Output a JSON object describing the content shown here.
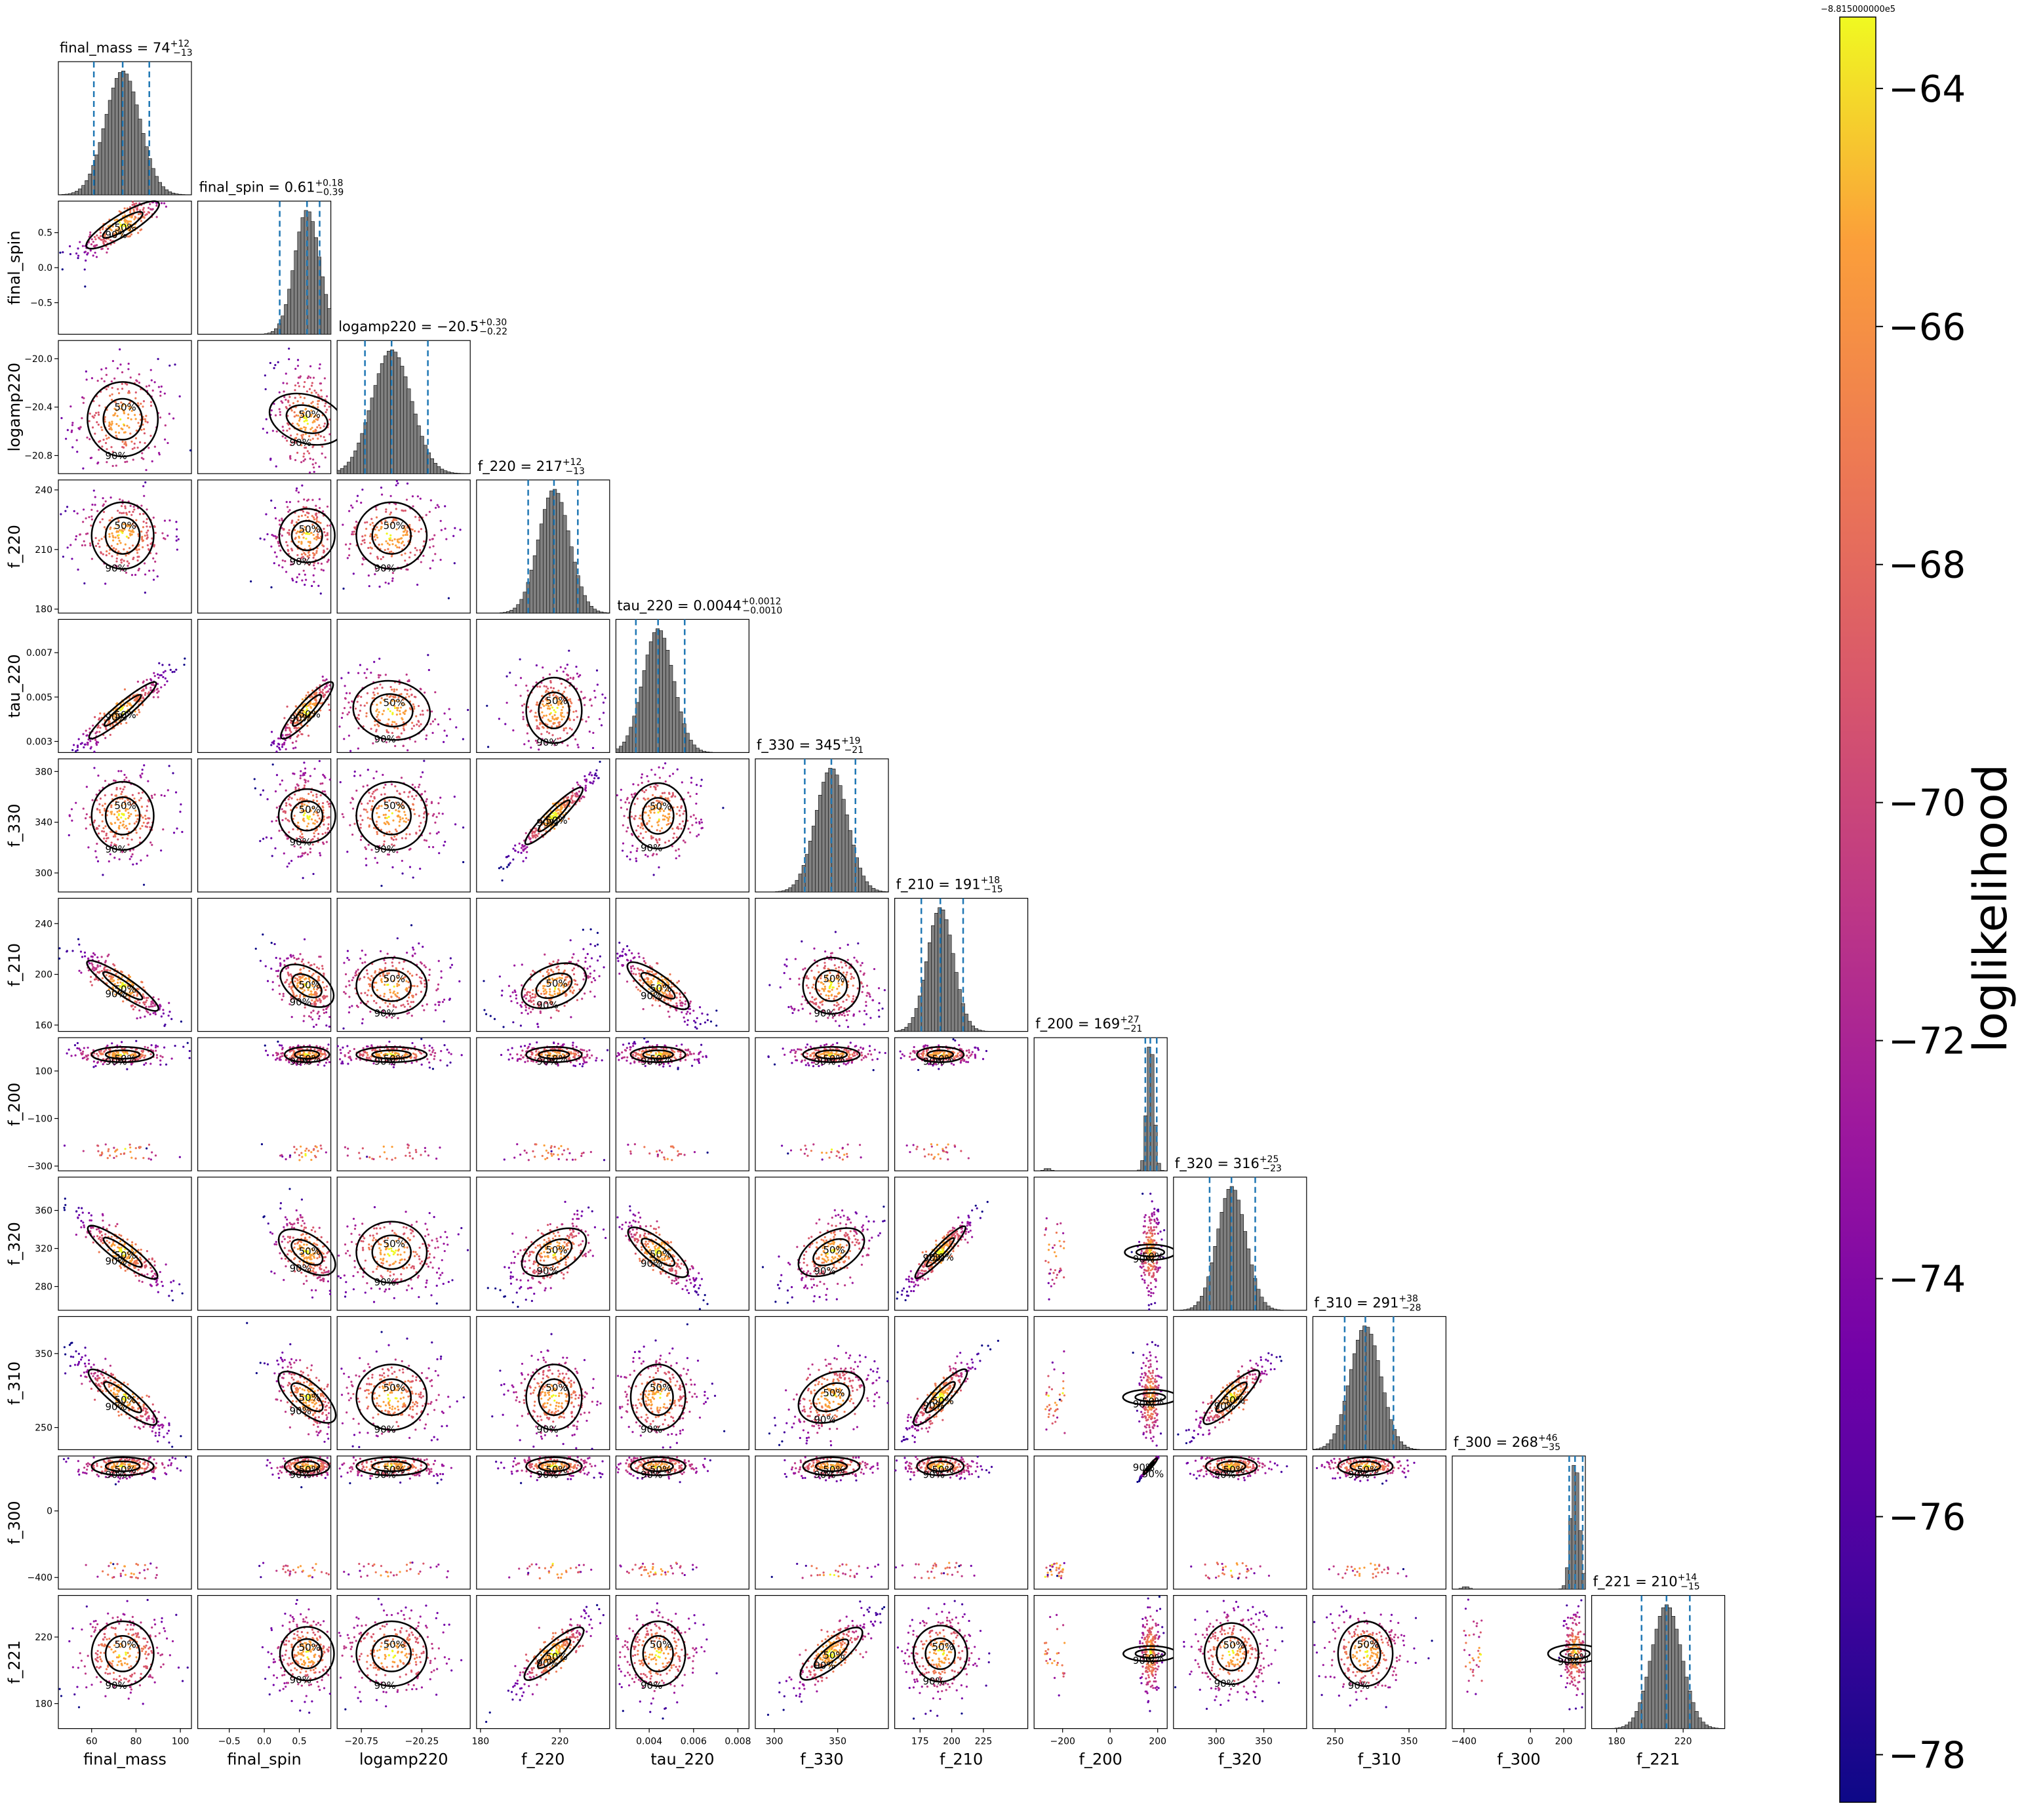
{
  "chart_data": {
    "type": "scatter",
    "title": "",
    "parameters": [
      {
        "name": "final_mass",
        "median": 74,
        "plus": "12",
        "minus": "13",
        "lim": [
          45,
          105
        ],
        "ticks": [
          60,
          80,
          100
        ],
        "tick_labels": [
          "60",
          "80",
          "100"
        ]
      },
      {
        "name": "final_spin",
        "median": 0.61,
        "plus": "0.18",
        "minus": "0.39",
        "lim": [
          -0.95,
          0.95
        ],
        "ticks": [
          -0.5,
          0.0,
          0.5
        ],
        "tick_labels": [
          "−0.5",
          "0.0",
          "0.5"
        ]
      },
      {
        "name": "logamp220",
        "median": -20.5,
        "plus": "0.30",
        "minus": "0.22",
        "lim": [
          -20.95,
          -19.85
        ],
        "ticks": [
          -20.75,
          -20.25
        ],
        "tick_labels": [
          "−20.75",
          "−20.25"
        ],
        "y_ticks": [
          -20.8,
          -20.4,
          -20.0
        ],
        "y_tick_labels": [
          "−20.8",
          "−20.4",
          "−20.0"
        ]
      },
      {
        "name": "f_220",
        "median": 217,
        "plus": "12",
        "minus": "13",
        "lim": [
          178,
          245
        ],
        "ticks": [
          180,
          220
        ],
        "tick_labels": [
          "180",
          "220"
        ],
        "y_ticks": [
          180,
          210,
          240
        ],
        "y_tick_labels": [
          "180",
          "210",
          "240"
        ]
      },
      {
        "name": "tau_220",
        "median": 0.0044,
        "plus": "0.0012",
        "minus": "0.0010",
        "lim": [
          0.0025,
          0.0085
        ],
        "ticks": [
          0.004,
          0.006,
          0.008
        ],
        "tick_labels": [
          "0.004",
          "0.006",
          "0.008"
        ],
        "y_ticks": [
          0.003,
          0.005,
          0.007
        ],
        "y_tick_labels": [
          "0.003",
          "0.005",
          "0.007"
        ]
      },
      {
        "name": "f_330",
        "median": 345,
        "plus": "19",
        "minus": "21",
        "lim": [
          285,
          390
        ],
        "ticks": [
          300,
          350
        ],
        "tick_labels": [
          "300",
          "350"
        ],
        "y_ticks": [
          300,
          340,
          380
        ],
        "y_tick_labels": [
          "300",
          "340",
          "380"
        ]
      },
      {
        "name": "f_210",
        "median": 191,
        "plus": "18",
        "minus": "15",
        "lim": [
          155,
          260
        ],
        "ticks": [
          175,
          200,
          225
        ],
        "tick_labels": [
          "175",
          "200",
          "225"
        ],
        "y_ticks": [
          160,
          200,
          240
        ],
        "y_tick_labels": [
          "160",
          "200",
          "240"
        ]
      },
      {
        "name": "f_200",
        "median": 169,
        "plus": "27",
        "minus": "21",
        "lim": [
          -320,
          240
        ],
        "ticks": [
          -200,
          0,
          200
        ],
        "tick_labels": [
          "−200",
          "0",
          "200"
        ],
        "y_ticks": [
          -300,
          -100,
          100
        ],
        "y_tick_labels": [
          "−300",
          "−100",
          "100"
        ]
      },
      {
        "name": "f_320",
        "median": 316,
        "plus": "25",
        "minus": "23",
        "lim": [
          255,
          395
        ],
        "ticks": [
          300,
          350
        ],
        "tick_labels": [
          "300",
          "350"
        ],
        "y_ticks": [
          280,
          320,
          360
        ],
        "y_tick_labels": [
          "280",
          "320",
          "360"
        ]
      },
      {
        "name": "f_310",
        "median": 291,
        "plus": "38",
        "minus": "28",
        "lim": [
          220,
          400
        ],
        "ticks": [
          250,
          350
        ],
        "tick_labels": [
          "250",
          "350"
        ],
        "y_ticks": [
          250,
          350
        ],
        "y_tick_labels": [
          "250",
          "350"
        ]
      },
      {
        "name": "f_300",
        "median": 268,
        "plus": "46",
        "minus": "35",
        "lim": [
          -470,
          330
        ],
        "ticks": [
          -400,
          0,
          200
        ],
        "tick_labels": [
          "−400",
          "0",
          "200"
        ],
        "y_ticks": [
          -400,
          0
        ],
        "y_tick_labels": [
          "−400",
          "0"
        ]
      },
      {
        "name": "f_221",
        "median": 210,
        "plus": "14",
        "minus": "15",
        "lim": [
          165,
          245
        ],
        "ticks": [
          180,
          220
        ],
        "tick_labels": [
          "180",
          "220"
        ],
        "y_ticks": [
          180,
          220
        ],
        "y_tick_labels": [
          "180",
          "220"
        ]
      }
    ],
    "contour_labels": [
      "50%",
      "90%"
    ],
    "colorbar": {
      "label": "loglikelihood",
      "offset_text": "−8.815000000e5",
      "min": -78.4,
      "max": -63.4,
      "ticks": [
        -64,
        -66,
        -68,
        -70,
        -72,
        -74,
        -76,
        -78
      ],
      "tick_labels": [
        "−64",
        "−66",
        "−68",
        "−70",
        "−72",
        "−74",
        "−76",
        "−78"
      ],
      "colormap": "plasma"
    },
    "colors": {
      "histogram_fill": "#808080",
      "quantile_line": "#1f77b4",
      "contour": "#000000"
    }
  }
}
